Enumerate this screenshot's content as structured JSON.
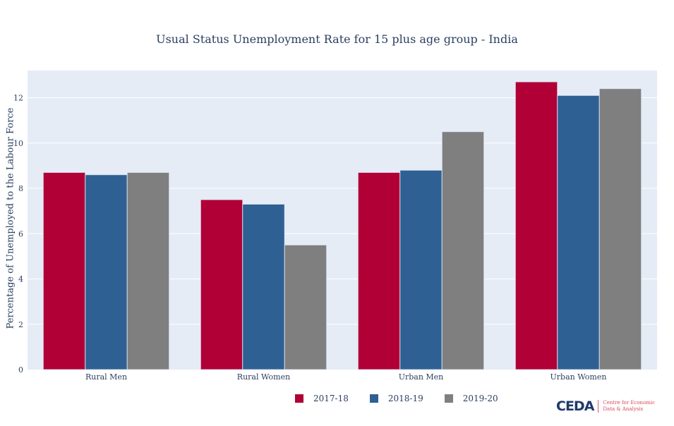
{
  "chart_data": {
    "type": "bar",
    "title": "Usual Status Unemployment Rate for 15 plus age group - India",
    "xlabel": "",
    "ylabel": "Percentage of Unemployed to the Labour Force",
    "ylim": [
      0,
      13.2
    ],
    "yticks": [
      0,
      2,
      4,
      6,
      8,
      10,
      12
    ],
    "grid": true,
    "legend_position": "bottom-center",
    "categories": [
      "Rural Men",
      "Rural Women",
      "Urban Men",
      "Urban Women"
    ],
    "series": [
      {
        "name": "2017-18",
        "color": "#b00036",
        "values": [
          8.7,
          7.5,
          8.7,
          12.7
        ]
      },
      {
        "name": "2018-19",
        "color": "#2e6093",
        "values": [
          8.6,
          7.3,
          8.8,
          12.1
        ]
      },
      {
        "name": "2019-20",
        "color": "#7f7f7f",
        "values": [
          8.7,
          5.5,
          10.5,
          12.4
        ]
      }
    ]
  },
  "logo": {
    "mark": "CEDA",
    "line1": "Centre for Economic",
    "line2": "Data & Analysis"
  },
  "colors": {
    "plot_background": "#e5ecf6",
    "text": "#2a3f5f"
  }
}
